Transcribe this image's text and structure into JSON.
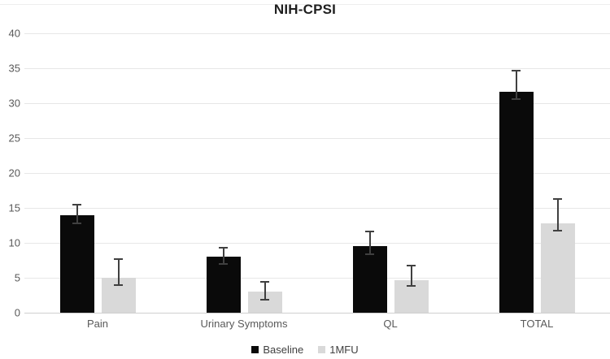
{
  "chart_data": {
    "type": "bar",
    "title": "NIH-CPSI",
    "categories": [
      "Pain",
      "Urinary Symptoms",
      "QL",
      "TOTAL"
    ],
    "series": [
      {
        "name": "Baseline",
        "color": "#0a0a0a",
        "values": [
          14,
          8,
          9.5,
          31.6
        ],
        "error_low": [
          12.8,
          7.0,
          8.4,
          30.6
        ],
        "error_high": [
          15.5,
          9.3,
          11.6,
          34.7
        ]
      },
      {
        "name": "1MFU",
        "color": "#d9d9d9",
        "values": [
          5,
          3,
          4.6,
          12.8
        ],
        "error_low": [
          4.0,
          1.9,
          3.8,
          11.8
        ],
        "error_high": [
          7.7,
          4.4,
          6.8,
          16.3
        ]
      }
    ],
    "ylim": [
      0,
      40
    ],
    "ytick_step": 5,
    "yticks": [
      0,
      5,
      10,
      15,
      20,
      25,
      30,
      35,
      40
    ],
    "grid": true,
    "legend_position": "bottom",
    "error_bar_color": "#404040",
    "tick_label_color": "#595959"
  }
}
